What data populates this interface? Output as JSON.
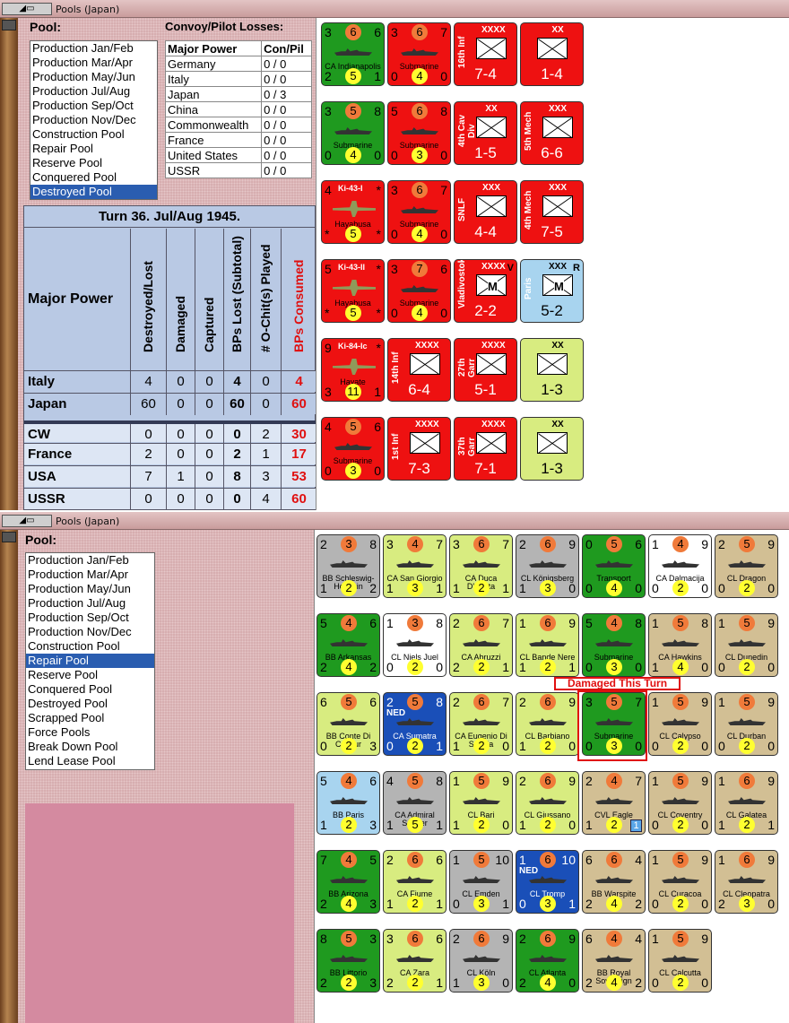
{
  "top": {
    "title": "Pools (Japan)",
    "pool_label": "Pool:",
    "pool_items": [
      "Production Jan/Feb",
      "Production Mar/Apr",
      "Production May/Jun",
      "Production Jul/Aug",
      "Production Sep/Oct",
      "Production Nov/Dec",
      "Construction Pool",
      "Repair Pool",
      "Reserve Pool",
      "Conquered Pool",
      "Destroyed Pool"
    ],
    "selected": "Destroyed Pool",
    "losses_label": "Convoy/Pilot Losses:",
    "losses_headers": [
      "Major Power",
      "Con/Pil"
    ],
    "losses": [
      [
        "Germany",
        "0 / 0"
      ],
      [
        "Italy",
        "0 / 0"
      ],
      [
        "Japan",
        "0 / 3"
      ],
      [
        "China",
        "0 / 0"
      ],
      [
        "Commonwealth",
        "0 / 0"
      ],
      [
        "France",
        "0 / 0"
      ],
      [
        "United States",
        "0 / 0"
      ],
      [
        "USSR",
        "0 / 0"
      ]
    ],
    "turn": "Turn 36.  Jul/Aug 1945.",
    "stats_headers": [
      "Major Power",
      "Destroyed/Lost",
      "Damaged",
      "Captured",
      "BPs Lost (Subtotal)",
      "# O-Chit(s) Played",
      "BPs Consumed"
    ],
    "stats_rows": [
      [
        "Italy",
        "4",
        "0",
        "0",
        "4",
        "0",
        "4"
      ],
      [
        "Japan",
        "60",
        "0",
        "0",
        "60",
        "0",
        "60"
      ],
      [
        "CW",
        "0",
        "0",
        "0",
        "0",
        "2",
        "30"
      ],
      [
        "France",
        "2",
        "0",
        "0",
        "2",
        "1",
        "17"
      ],
      [
        "USA",
        "7",
        "1",
        "0",
        "8",
        "3",
        "53"
      ],
      [
        "USSR",
        "0",
        "0",
        "0",
        "0",
        "4",
        "60"
      ]
    ],
    "counters": [
      {
        "kind": "ship",
        "bg": "#1f9a1f",
        "tl": "3",
        "top": "6",
        "tr": "6",
        "name": "CA Indianapolis",
        "bl": "2",
        "bot": "5",
        "br": "1"
      },
      {
        "kind": "ship",
        "bg": "#ee1111",
        "tl": "3",
        "top": "6",
        "tr": "7",
        "name": "Submarine",
        "bl": "0",
        "bot": "4",
        "br": "0"
      },
      {
        "kind": "land",
        "bg": "#ee1111",
        "size": "XXXX",
        "side": "16th Inf",
        "val": "7-4"
      },
      {
        "kind": "land",
        "bg": "#ee1111",
        "size": "XX",
        "side": "",
        "val": "1-4"
      },
      {
        "kind": "ship",
        "bg": "#1f9a1f",
        "tl": "3",
        "top": "5",
        "tr": "8",
        "name": "Submarine",
        "bl": "0",
        "bot": "4",
        "br": "0"
      },
      {
        "kind": "ship",
        "bg": "#ee1111",
        "tl": "5",
        "top": "6",
        "tr": "8",
        "name": "Submarine",
        "bl": "0",
        "bot": "3",
        "br": "0"
      },
      {
        "kind": "land",
        "bg": "#ee1111",
        "size": "XX",
        "side": "4th Cav Div",
        "val": "1-5"
      },
      {
        "kind": "land",
        "bg": "#ee1111",
        "size": "XXX",
        "side": "5th Mech",
        "val": "6-6"
      },
      {
        "kind": "air",
        "bg": "#ee1111",
        "tl": "4",
        "model": "Ki-43-I",
        "tr": "*",
        "name": "Hayabusa",
        "bl": "*",
        "bot": "5",
        "br": "*"
      },
      {
        "kind": "ship",
        "bg": "#ee1111",
        "tl": "3",
        "top": "6",
        "tr": "7",
        "name": "Submarine",
        "bl": "0",
        "bot": "4",
        "br": "0"
      },
      {
        "kind": "land",
        "bg": "#ee1111",
        "size": "XXX",
        "side": "SNLF",
        "val": "4-4"
      },
      {
        "kind": "land",
        "bg": "#ee1111",
        "size": "XXX",
        "side": "4th Mech",
        "val": "7-5"
      },
      {
        "kind": "air",
        "bg": "#ee1111",
        "tl": "5",
        "model": "Ki-43-II",
        "tr": "*",
        "name": "Hayabusa",
        "bl": "*",
        "bot": "5",
        "br": "*"
      },
      {
        "kind": "ship",
        "bg": "#ee1111",
        "tl": "3",
        "top": "7",
        "tr": "6",
        "name": "Submarine",
        "bl": "0",
        "bot": "4",
        "br": "0"
      },
      {
        "kind": "land",
        "bg": "#ee1111",
        "size": "XXXX",
        "side": "Vladivostok",
        "val": "2-2",
        "corner": "V",
        "mark": "M"
      },
      {
        "kind": "land",
        "bg": "#a8d4ef",
        "size": "XXX",
        "side": "Paris",
        "val": "5-2",
        "corner": "R",
        "mark": "M"
      },
      {
        "kind": "air",
        "bg": "#ee1111",
        "tl": "9",
        "model": "Ki-84-Ic",
        "tr": "*",
        "name": "Hayate",
        "bl": "3",
        "bot": "11",
        "br": "1"
      },
      {
        "kind": "land",
        "bg": "#ee1111",
        "size": "XXXX",
        "side": "14th Inf",
        "val": "6-4"
      },
      {
        "kind": "land",
        "bg": "#ee1111",
        "size": "XXXX",
        "side": "27th Garr",
        "val": "5-1"
      },
      {
        "kind": "land",
        "bg": "#d8ec80",
        "size": "XX",
        "side": "",
        "val": "1-3"
      },
      {
        "kind": "ship",
        "bg": "#ee1111",
        "tl": "4",
        "top": "5",
        "tr": "6",
        "name": "Submarine",
        "bl": "0",
        "bot": "3",
        "br": "0"
      },
      {
        "kind": "land",
        "bg": "#ee1111",
        "size": "XXXX",
        "side": "1st Inf",
        "val": "7-3"
      },
      {
        "kind": "land",
        "bg": "#ee1111",
        "size": "XXXX",
        "side": "37th Garr",
        "val": "7-1"
      },
      {
        "kind": "land",
        "bg": "#d8ec80",
        "size": "XX",
        "side": "",
        "val": "1-3"
      }
    ]
  },
  "bottom": {
    "title": "Pools (Japan)",
    "pool_label": "Pool:",
    "pool_items": [
      "Production Jan/Feb",
      "Production Mar/Apr",
      "Production May/Jun",
      "Production Jul/Aug",
      "Production Sep/Oct",
      "Production Nov/Dec",
      "Construction Pool",
      "Repair Pool",
      "Reserve Pool",
      "Conquered Pool",
      "Destroyed Pool",
      "Scrapped Pool",
      "Force Pools",
      "Break Down Pool",
      "Lend Lease Pool"
    ],
    "selected": "Repair Pool",
    "damaged_label": "Damaged This Turn",
    "counters": [
      {
        "bg": "#b4b4b4",
        "tl": "2",
        "top": "3",
        "tr": "8",
        "name": "BB Schleswig-Holstein",
        "bl": "1",
        "bot": "2",
        "br": "2"
      },
      {
        "bg": "#d8ec80",
        "tl": "3",
        "top": "4",
        "tr": "7",
        "name": "CA San Giorgio",
        "bl": "1",
        "bot": "3",
        "br": "1"
      },
      {
        "bg": "#d8ec80",
        "tl": "3",
        "top": "6",
        "tr": "7",
        "name": "CA Duca D'Aosta",
        "bl": "1",
        "bot": "2",
        "br": "1"
      },
      {
        "bg": "#b4b4b4",
        "tl": "2",
        "top": "6",
        "tr": "9",
        "name": "CL Königsberg",
        "bl": "1",
        "bot": "3",
        "br": "0"
      },
      {
        "bg": "#1f9a1f",
        "tl": "0",
        "top": "5",
        "tr": "6",
        "name": "Transport",
        "bl": "0",
        "bot": "4",
        "br": "0"
      },
      {
        "bg": "#ffffff",
        "tl": "1",
        "top": "4",
        "tr": "9",
        "name": "CA Dalmacija",
        "bl": "0",
        "bot": "2",
        "br": "0"
      },
      {
        "bg": "#d2bf94",
        "tl": "2",
        "top": "5",
        "tr": "9",
        "name": "CL Dragon",
        "bl": "0",
        "bot": "2",
        "br": "0"
      },
      {
        "bg": "#1f9a1f",
        "tl": "5",
        "top": "4",
        "tr": "6",
        "name": "BB Arkansas",
        "bl": "2",
        "bot": "4",
        "br": "2"
      },
      {
        "bg": "#ffffff",
        "tl": "1",
        "top": "3",
        "tr": "8",
        "name": "CL Niels Juel",
        "bl": "0",
        "bot": "2",
        "br": "0"
      },
      {
        "bg": "#d8ec80",
        "tl": "2",
        "top": "6",
        "tr": "7",
        "name": "CA Abruzzi",
        "bl": "2",
        "bot": "2",
        "br": "1"
      },
      {
        "bg": "#d8ec80",
        "tl": "1",
        "top": "6",
        "tr": "9",
        "name": "CL Bande Nere",
        "bl": "1",
        "bot": "2",
        "br": "1"
      },
      {
        "bg": "#1f9a1f",
        "tl": "5",
        "top": "4",
        "tr": "8",
        "name": "Submarine",
        "bl": "0",
        "bot": "3",
        "br": "0"
      },
      {
        "bg": "#d2bf94",
        "tl": "1",
        "top": "5",
        "tr": "8",
        "name": "CA Hawkins",
        "bl": "1",
        "bot": "4",
        "br": "0"
      },
      {
        "bg": "#d2bf94",
        "tl": "1",
        "top": "5",
        "tr": "9",
        "name": "CL Dunedin",
        "bl": "0",
        "bot": "2",
        "br": "0"
      },
      {
        "bg": "#d8ec80",
        "tl": "6",
        "top": "5",
        "tr": "6",
        "name": "BB Conte Di Cavour",
        "bl": "0",
        "bot": "2",
        "br": "3"
      },
      {
        "bg": "#1a4fb8",
        "tl": "2",
        "top": "5",
        "tr": "8",
        "name": "CA Sumatra",
        "bl": "0",
        "bot": "2",
        "br": "1",
        "flag": "NED"
      },
      {
        "bg": "#d8ec80",
        "tl": "2",
        "top": "6",
        "tr": "7",
        "name": "CA Eugenio Di Savoia",
        "bl": "1",
        "bot": "2",
        "br": "0"
      },
      {
        "bg": "#d8ec80",
        "tl": "2",
        "top": "6",
        "tr": "9",
        "name": "CL Barbiano",
        "bl": "1",
        "bot": "2",
        "br": "0"
      },
      {
        "bg": "#1f9a1f",
        "tl": "3",
        "top": "5",
        "tr": "7",
        "name": "Submarine",
        "bl": "0",
        "bot": "3",
        "br": "0"
      },
      {
        "bg": "#d2bf94",
        "tl": "1",
        "top": "5",
        "tr": "9",
        "name": "CL Calypso",
        "bl": "0",
        "bot": "2",
        "br": "0"
      },
      {
        "bg": "#d2bf94",
        "tl": "1",
        "top": "5",
        "tr": "9",
        "name": "CL Durban",
        "bl": "0",
        "bot": "2",
        "br": "0"
      },
      {
        "bg": "#a8d4ef",
        "tl": "5",
        "top": "4",
        "tr": "6",
        "name": "BB Paris",
        "bl": "1",
        "bot": "2",
        "br": "3"
      },
      {
        "bg": "#b4b4b4",
        "tl": "4",
        "top": "5",
        "tr": "8",
        "name": "CA Admiral Scheer",
        "bl": "1",
        "bot": "5",
        "br": "1"
      },
      {
        "bg": "#d8ec80",
        "tl": "1",
        "top": "5",
        "tr": "9",
        "name": "CL Bari",
        "bl": "1",
        "bot": "2",
        "br": "0"
      },
      {
        "bg": "#d8ec80",
        "tl": "2",
        "top": "6",
        "tr": "9",
        "name": "CL Giussano",
        "bl": "1",
        "bot": "2",
        "br": "0"
      },
      {
        "bg": "#d2bf94",
        "tl": "2",
        "top": "4",
        "tr": "7",
        "name": "CVL Eagle",
        "bl": "1",
        "bot": "2",
        "br": "",
        "badge": "1"
      },
      {
        "bg": "#d2bf94",
        "tl": "1",
        "top": "5",
        "tr": "9",
        "name": "CL Coventry",
        "bl": "0",
        "bot": "2",
        "br": "0"
      },
      {
        "bg": "#d2bf94",
        "tl": "1",
        "top": "6",
        "tr": "9",
        "name": "CL Galatea",
        "bl": "1",
        "bot": "2",
        "br": "1"
      },
      {
        "bg": "#1f9a1f",
        "tl": "7",
        "top": "4",
        "tr": "5",
        "name": "BB Arizona",
        "bl": "2",
        "bot": "4",
        "br": "3"
      },
      {
        "bg": "#d8ec80",
        "tl": "2",
        "top": "6",
        "tr": "6",
        "name": "CA Fiume",
        "bl": "1",
        "bot": "2",
        "br": "1"
      },
      {
        "bg": "#b4b4b4",
        "tl": "1",
        "top": "5",
        "tr": "10",
        "name": "CL Emden",
        "bl": "0",
        "bot": "3",
        "br": "1"
      },
      {
        "bg": "#1a4fb8",
        "tl": "1",
        "top": "6",
        "tr": "10",
        "name": "CL Tromp",
        "bl": "0",
        "bot": "3",
        "br": "1",
        "flag": "NED"
      },
      {
        "bg": "#d2bf94",
        "tl": "6",
        "top": "6",
        "tr": "4",
        "name": "BB Warspite",
        "bl": "2",
        "bot": "4",
        "br": "2"
      },
      {
        "bg": "#d2bf94",
        "tl": "1",
        "top": "5",
        "tr": "9",
        "name": "CL Curacoa",
        "bl": "0",
        "bot": "2",
        "br": "0"
      },
      {
        "bg": "#d2bf94",
        "tl": "1",
        "top": "6",
        "tr": "9",
        "name": "CL Cleopatra",
        "bl": "2",
        "bot": "3",
        "br": "0"
      },
      {
        "bg": "#1f9a1f",
        "tl": "8",
        "top": "5",
        "tr": "3",
        "name": "BB Littorio",
        "bl": "2",
        "bot": "2",
        "br": "3"
      },
      {
        "bg": "#d8ec80",
        "tl": "3",
        "top": "6",
        "tr": "6",
        "name": "CA Zara",
        "bl": "2",
        "bot": "2",
        "br": "1"
      },
      {
        "bg": "#b4b4b4",
        "tl": "2",
        "top": "6",
        "tr": "9",
        "name": "CL Köln",
        "bl": "1",
        "bot": "3",
        "br": "0"
      },
      {
        "bg": "#1f9a1f",
        "tl": "2",
        "top": "6",
        "tr": "9",
        "name": "CL Atlanta",
        "bl": "2",
        "bot": "4",
        "br": "0"
      },
      {
        "bg": "#d2bf94",
        "tl": "6",
        "top": "4",
        "tr": "4",
        "name": "BB Royal Sovereign",
        "bl": "2",
        "bot": "4",
        "br": "2"
      },
      {
        "bg": "#d2bf94",
        "tl": "1",
        "top": "5",
        "tr": "9",
        "name": "CL Calcutta",
        "bl": "0",
        "bot": "2",
        "br": "0"
      }
    ]
  }
}
